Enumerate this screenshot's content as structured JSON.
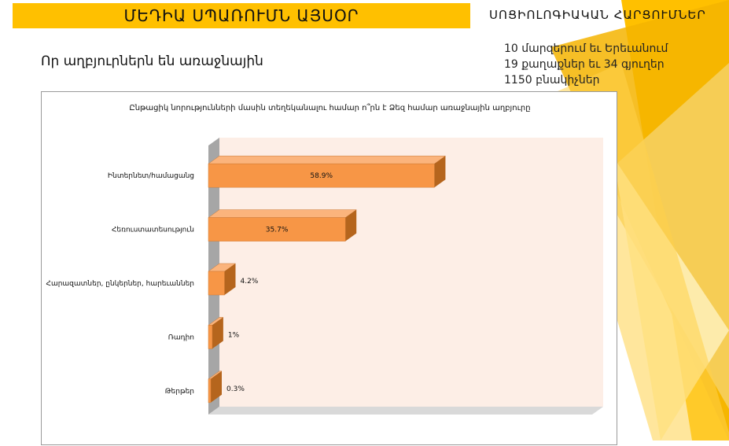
{
  "header": {
    "title": "ՄԵԴԻԱ ՍՊԱՌՈՒՄՆ ԱՅՍՕՐ",
    "subtitle": "Որ աղբյուրներն են առաջնային",
    "survey_heading": "ՍՈՑԻՈԼՈԳԻԱԿԱՆ ՀԱՐՑՈՒՄՆԵՐ",
    "facts": [
      "10 մարզերում եւ Երեւանում",
      "19 քաղաքներ եւ 34 գյուղեր",
      "1150 բնակիչներ"
    ]
  },
  "colors": {
    "banner": "#ffc000",
    "bar_front": "#f79646",
    "bar_top": "#fbb47c",
    "bar_side": "#b5651d",
    "plot_back": "#fdeee6"
  },
  "chart_data": {
    "type": "bar",
    "orientation": "horizontal",
    "title": "Ընթացիկ նորությունների մասին տեղեկանալու համար ո՞րն է Ձեզ համար առաջնային աղբյուրը",
    "categories": [
      "Ինտերնետ/համացանց",
      "Հեռուստատեսություն",
      "Հարազատներ, ընկերներ, հարեւաններ",
      "Ռադիո",
      "Թերթեր"
    ],
    "values": [
      58.9,
      35.7,
      4.2,
      1,
      0.3
    ],
    "data_labels": [
      "58.9%",
      "35.7%",
      "4.2%",
      "1%",
      "0.3%"
    ],
    "xlim": [
      0,
      100
    ],
    "xlabel": "",
    "ylabel": "",
    "grid": false,
    "legend": "none"
  }
}
